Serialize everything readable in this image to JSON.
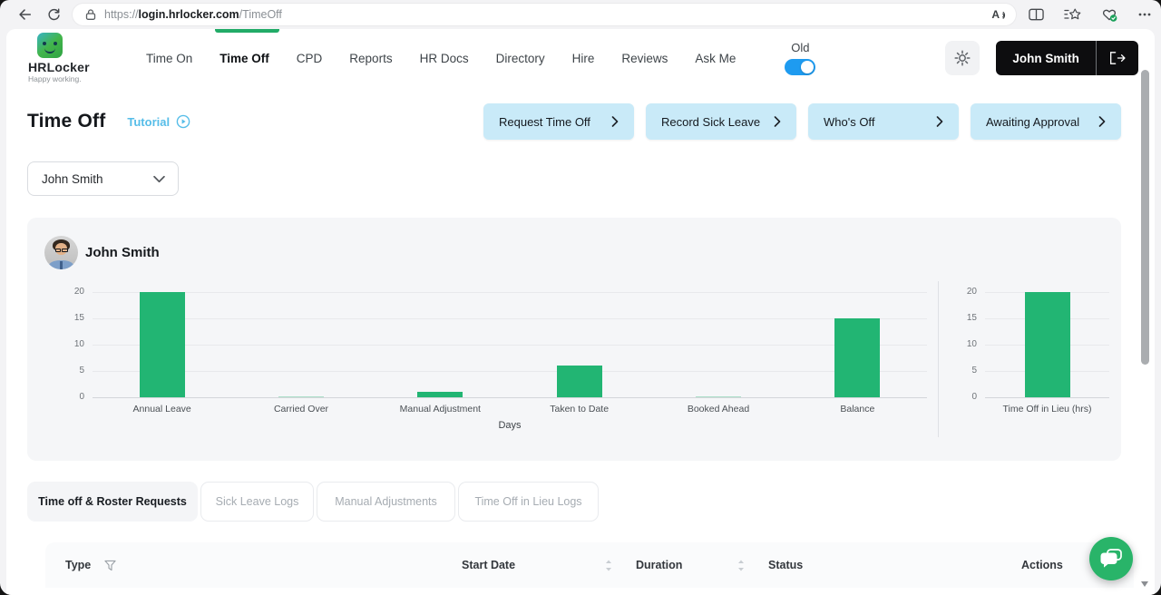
{
  "browser": {
    "url": {
      "scheme": "https://",
      "host": "login.hrlocker.com",
      "path": "/TimeOff"
    }
  },
  "nav": {
    "logo_title": "HRLocker",
    "logo_tagline": "Happy working.",
    "items": [
      {
        "label": "Time On",
        "active": false
      },
      {
        "label": "Time Off",
        "active": true
      },
      {
        "label": "CPD",
        "active": false
      },
      {
        "label": "Reports",
        "active": false
      },
      {
        "label": "HR Docs",
        "active": false
      },
      {
        "label": "Directory",
        "active": false
      },
      {
        "label": "Hire",
        "active": false
      },
      {
        "label": "Reviews",
        "active": false
      },
      {
        "label": "Ask Me",
        "active": false
      }
    ],
    "old_toggle_label": "Old",
    "old_toggle_on": true,
    "user_name": "John Smith"
  },
  "page": {
    "title": "Time Off",
    "tutorial_label": "Tutorial",
    "actions": [
      "Request Time Off",
      "Record Sick Leave",
      "Who's Off",
      "Awaiting Approval"
    ],
    "employee_selector_value": "John Smith",
    "profile_name": "John Smith",
    "tabs": [
      {
        "label": "Time off & Roster Requests",
        "active": true
      },
      {
        "label": "Sick Leave Logs",
        "active": false
      },
      {
        "label": "Manual Adjustments",
        "active": false
      },
      {
        "label": "Time Off in Lieu Logs",
        "active": false
      }
    ],
    "table_columns": [
      {
        "label": "Type",
        "icon": "filter"
      },
      {
        "label": "Start Date",
        "icon": "sort"
      },
      {
        "label": "Duration",
        "icon": "sort"
      },
      {
        "label": "Status",
        "icon": ""
      },
      {
        "label": "Actions",
        "icon": ""
      }
    ]
  },
  "chart_data": [
    {
      "type": "bar",
      "categories": [
        "Annual Leave",
        "Carried Over",
        "Manual Adjustment",
        "Taken to Date",
        "Booked Ahead",
        "Balance"
      ],
      "values": [
        20,
        0,
        1,
        6,
        0,
        15
      ],
      "title": "",
      "xlabel": "Days",
      "ylabel": "",
      "ylim": [
        0,
        20
      ],
      "yticks": [
        0,
        5,
        10,
        15,
        20
      ],
      "grid": true,
      "legend": "none"
    },
    {
      "type": "bar",
      "categories": [
        "Time Off in Lieu (hrs)"
      ],
      "values": [
        20
      ],
      "title": "",
      "xlabel": "",
      "ylabel": "",
      "ylim": [
        0,
        20
      ],
      "yticks": [
        0,
        5,
        10,
        15,
        20
      ],
      "grid": true,
      "legend": "none"
    }
  ],
  "colors": {
    "bar_green": "#22b573",
    "indicator_green": "#21ab67",
    "action_button_blue": "#c9eaf8",
    "toggle_blue": "#1e9bf0",
    "tutorial_blue": "#56bde8",
    "chat_green": "#29b469",
    "user_button_black": "#0d0d0f"
  }
}
